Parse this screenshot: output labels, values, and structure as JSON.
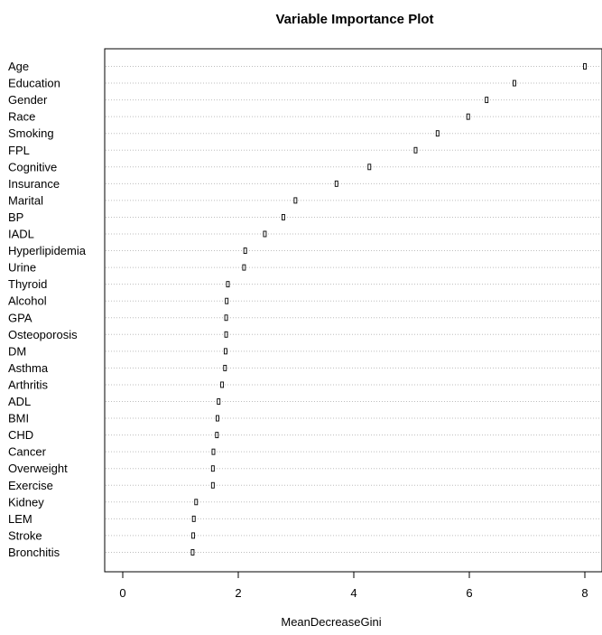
{
  "chart_data": {
    "type": "scatter",
    "title": "Variable Importance Plot",
    "xlabel": "MeanDecreaseGini",
    "ylabel": "",
    "xlim": [
      -0.3,
      8.3
    ],
    "xticks": [
      0,
      2,
      4,
      6,
      8
    ],
    "grid": "dotted horizontal",
    "categories": [
      "Age",
      "Education",
      "Gender",
      "Race",
      "Smoking",
      "FPL",
      "Cognitive",
      "Insurance",
      "Marital",
      "BP",
      "IADL",
      "Hyperlipidemia",
      "Urine",
      "Thyroid",
      "Alcohol",
      "GPA",
      "Osteoporosis",
      "DM",
      "Asthma",
      "Arthritis",
      "ADL",
      "BMI",
      "CHD",
      "Cancer",
      "Overweight",
      "Exercise",
      "Kidney",
      "LEM",
      "Stroke",
      "Bronchitis"
    ],
    "values": [
      8.0,
      6.78,
      6.3,
      5.98,
      5.45,
      5.07,
      4.27,
      3.7,
      2.99,
      2.78,
      2.46,
      2.12,
      2.1,
      1.82,
      1.8,
      1.79,
      1.79,
      1.78,
      1.77,
      1.72,
      1.66,
      1.64,
      1.63,
      1.57,
      1.56,
      1.56,
      1.27,
      1.23,
      1.22,
      1.21
    ]
  }
}
